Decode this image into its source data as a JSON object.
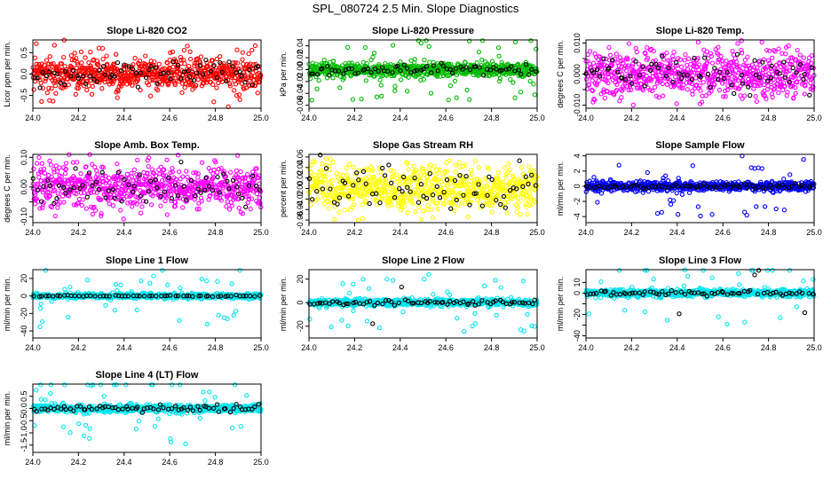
{
  "page": {
    "title": "SPL_080724  2.5 Min. Slope Diagnostics"
  },
  "chart_data": [
    {
      "type": "scatter",
      "title": "Slope Li-820 CO2",
      "ylabel": "Licor ppm per min.",
      "xlim": [
        24.0,
        25.0
      ],
      "ylim": [
        -0.8,
        0.8
      ],
      "xticks": [
        "24.0",
        "24.2",
        "24.4",
        "24.6",
        "24.8",
        "25.0"
      ],
      "yticks": [
        -0.5,
        0.0,
        0.5
      ],
      "ytick_labels": [
        "-0.5",
        "0.0",
        "0.5"
      ],
      "series": [
        {
          "color": "#ff0000",
          "n": 700,
          "spread": 0.18,
          "outliers": 0.12,
          "outlier_range": 0.8
        },
        {
          "color": "#000000",
          "n": 70,
          "spread": 0.15,
          "outliers": 0.02,
          "outlier_range": 0.4
        }
      ]
    },
    {
      "type": "scatter",
      "title": "Slope Li-820 Pressure",
      "ylabel": "kPa per min.",
      "xlim": [
        24.0,
        25.0
      ],
      "ylim": [
        -0.065,
        0.05
      ],
      "xticks": [
        "24.0",
        "24.2",
        "24.4",
        "24.6",
        "24.8",
        "25.0"
      ],
      "yticks": [
        -0.06,
        -0.04,
        -0.02,
        0.0,
        0.02,
        0.04
      ],
      "ytick_labels": [
        "-0.06",
        "-0.04",
        "-0.02",
        "0.00",
        "0.02",
        "0.04"
      ],
      "series": [
        {
          "color": "#00bb00",
          "n": 700,
          "spread": 0.006,
          "outliers": 0.08,
          "outlier_range": 0.055
        },
        {
          "color": "#000000",
          "n": 70,
          "spread": 0.004,
          "outliers": 0.0,
          "outlier_range": 0.01
        }
      ]
    },
    {
      "type": "scatter",
      "title": "Slope Li-820 Temp.",
      "ylabel": "degrees C per min.",
      "xlim": [
        24.0,
        25.0
      ],
      "ylim": [
        -0.011,
        0.011
      ],
      "xticks": [
        "24.0",
        "24.2",
        "24.4",
        "24.6",
        "24.8",
        "25.0"
      ],
      "yticks": [
        -0.01,
        -0.005,
        0.0,
        0.005,
        0.01
      ],
      "ytick_labels": [
        "-0.010",
        "",
        "0.000",
        "",
        "0.010"
      ],
      "series": [
        {
          "color": "#ff00ff",
          "n": 700,
          "spread": 0.0035,
          "outliers": 0.1,
          "outlier_range": 0.01
        },
        {
          "color": "#000000",
          "n": 70,
          "spread": 0.003,
          "outliers": 0.05,
          "outlier_range": 0.008
        }
      ]
    },
    {
      "type": "scatter",
      "title": "Slope Amb. Box Temp.",
      "ylabel": "degrees C per min.",
      "xlim": [
        24.0,
        25.0
      ],
      "ylim": [
        -0.12,
        0.11
      ],
      "xticks": [
        "24.0",
        "24.2",
        "24.4",
        "24.6",
        "24.8",
        "25.0"
      ],
      "yticks": [
        -0.1,
        -0.05,
        0.0,
        0.05,
        0.1
      ],
      "ytick_labels": [
        "-0.10",
        "",
        "0.00",
        "",
        "0.10"
      ],
      "series": [
        {
          "color": "#ff00ff",
          "n": 700,
          "spread": 0.035,
          "outliers": 0.05,
          "outlier_range": 0.11
        },
        {
          "color": "#000000",
          "n": 70,
          "spread": 0.03,
          "outliers": 0.02,
          "outlier_range": 0.06
        }
      ]
    },
    {
      "type": "scatter",
      "title": "Slope Gas Stream RH",
      "ylabel": "percent per min.",
      "xlim": [
        24.0,
        25.0
      ],
      "ylim": [
        -0.065,
        0.065
      ],
      "xticks": [
        "24.0",
        "24.2",
        "24.4",
        "24.6",
        "24.8",
        "25.0"
      ],
      "yticks": [
        -0.06,
        -0.04,
        -0.02,
        0.0,
        0.02,
        0.04,
        0.06
      ],
      "ytick_labels": [
        "-0.06",
        "-0.04",
        "-0.02",
        "0.00",
        "0.02",
        "0.04",
        "0.06"
      ],
      "series": [
        {
          "color": "#ffff00",
          "n": 700,
          "spread": 0.022,
          "outliers": 0.05,
          "outlier_range": 0.06
        },
        {
          "color": "#000000",
          "n": 70,
          "spread": 0.025,
          "outliers": 0.05,
          "outlier_range": 0.06
        }
      ]
    },
    {
      "type": "scatter",
      "title": "Slope Sample Flow",
      "ylabel": "ml/min per min.",
      "xlim": [
        24.0,
        25.0
      ],
      "ylim": [
        -4.8,
        4.2
      ],
      "xticks": [
        "24.0",
        "24.2",
        "24.4",
        "24.6",
        "24.8",
        "25.0"
      ],
      "yticks": [
        -4,
        -2,
        0,
        2,
        4
      ],
      "ytick_labels": [
        "-4",
        "-2",
        "0",
        "2",
        "4"
      ],
      "series": [
        {
          "color": "#0000ff",
          "n": 700,
          "spread": 0.3,
          "outliers": 0.06,
          "outlier_range": 4.0
        },
        {
          "color": "#000000",
          "n": 70,
          "spread": 0.15,
          "outliers": 0.0,
          "outlier_range": 1.0
        }
      ]
    },
    {
      "type": "scatter",
      "title": "Slope Line 1 Flow",
      "ylabel": "ml/min per min.",
      "xlim": [
        24.0,
        25.0
      ],
      "ylim": [
        -48,
        30
      ],
      "xticks": [
        "24.0",
        "24.2",
        "24.4",
        "24.6",
        "24.8",
        "25.0"
      ],
      "yticks": [
        -40,
        -20,
        0,
        20
      ],
      "ytick_labels": [
        "-40",
        "-20",
        "0",
        "20"
      ],
      "series": [
        {
          "color": "#00e5ee",
          "n": 700,
          "spread": 1.5,
          "outliers": 0.07,
          "outlier_range": 40
        },
        {
          "color": "#000000",
          "n": 60,
          "spread": 0.3,
          "outliers": 0.0,
          "outlier_range": 2
        }
      ]
    },
    {
      "type": "scatter",
      "title": "Slope Line 2 Flow",
      "ylabel": "ml/min per min.",
      "xlim": [
        24.0,
        25.0
      ],
      "ylim": [
        -30,
        28
      ],
      "xticks": [
        "24.0",
        "24.2",
        "24.4",
        "24.6",
        "24.8",
        "25.0"
      ],
      "yticks": [
        -20,
        0,
        20
      ],
      "ytick_labels": [
        "-20",
        "0",
        "20"
      ],
      "series": [
        {
          "color": "#00e5ee",
          "n": 700,
          "spread": 1.5,
          "outliers": 0.06,
          "outlier_range": 25
        },
        {
          "color": "#000000",
          "n": 70,
          "spread": 1.0,
          "outliers": 0.05,
          "outlier_range": 22
        }
      ]
    },
    {
      "type": "scatter",
      "title": "Slope Line 3 Flow",
      "ylabel": "ml/min per min.",
      "xlim": [
        24.0,
        25.0
      ],
      "ylim": [
        -42,
        22
      ],
      "xticks": [
        "24.0",
        "24.2",
        "24.4",
        "24.6",
        "24.8",
        "25.0"
      ],
      "yticks": [
        -40,
        -30,
        -20,
        -10,
        0,
        10
      ],
      "ytick_labels": [
        "-40",
        "",
        "-20",
        "",
        "0",
        "10"
      ],
      "series": [
        {
          "color": "#00e5ee",
          "n": 700,
          "spread": 1.8,
          "outliers": 0.05,
          "outlier_range": 30
        },
        {
          "color": "#000000",
          "n": 70,
          "spread": 1.2,
          "outliers": 0.05,
          "outlier_range": 25
        }
      ]
    },
    {
      "type": "scatter",
      "title": "Slope Line 4 (LT) Flow",
      "ylabel": "ml/min per min.",
      "xlim": [
        24.0,
        25.0
      ],
      "ylim": [
        -1.8,
        1.0
      ],
      "xticks": [
        "24.0",
        "24.2",
        "24.4",
        "24.6",
        "24.8",
        "25.0"
      ],
      "yticks": [
        -1.5,
        -1.0,
        -0.5,
        0.0,
        0.5
      ],
      "ytick_labels": [
        "-1.5",
        "-1.0",
        "-0.5",
        "0.0",
        "0.5"
      ],
      "series": [
        {
          "color": "#00e5ee",
          "n": 700,
          "spread": 0.08,
          "outliers": 0.06,
          "outlier_range": 1.5
        },
        {
          "color": "#000000",
          "n": 70,
          "spread": 0.08,
          "outliers": 0.04,
          "outlier_range": 0.6
        }
      ]
    }
  ]
}
